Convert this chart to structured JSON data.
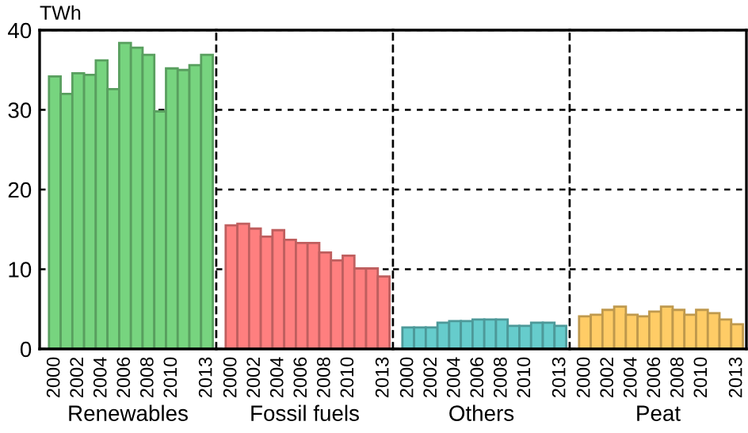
{
  "chart_data": [
    {
      "type": "bar",
      "ylabel": "TWh",
      "xlabel": "Renewables",
      "categories": [
        "2000",
        null,
        "2002",
        null,
        "2004",
        null,
        "2006",
        null,
        "2008",
        null,
        "2010",
        null,
        null,
        "2013"
      ],
      "ylim": [
        0,
        40
      ],
      "yticks": [
        0,
        10,
        20,
        30,
        40
      ],
      "grid": "y",
      "series": [
        {
          "color": "#77d47f",
          "values": [
            34.2,
            32.0,
            34.6,
            34.4,
            36.2,
            32.6,
            38.4,
            37.8,
            36.9,
            29.8,
            35.2,
            35.0,
            35.6,
            36.9
          ]
        }
      ]
    },
    {
      "type": "bar",
      "xlabel": "Fossil fuels",
      "categories": [
        "2000",
        null,
        "2002",
        null,
        "2004",
        null,
        "2006",
        null,
        "2008",
        null,
        "2010",
        null,
        null,
        "2013"
      ],
      "ylim": [
        0,
        40
      ],
      "yticks": [
        0,
        10,
        20,
        30,
        40
      ],
      "grid": "y",
      "tick_labels": "x",
      "series": [
        {
          "color": "#ff7f7f",
          "values": [
            15.5,
            15.7,
            15.1,
            14.1,
            14.9,
            13.7,
            13.3,
            13.3,
            12.1,
            11.1,
            11.7,
            10.1,
            10.1,
            9.1
          ]
        }
      ]
    },
    {
      "type": "bar",
      "xlabel": "Others",
      "categories": [
        "2000",
        null,
        "2002",
        null,
        "2004",
        null,
        "2006",
        null,
        "2008",
        null,
        "2010",
        null,
        null,
        "2013"
      ],
      "ylim": [
        0,
        40
      ],
      "yticks": [
        0,
        10,
        20,
        30,
        40
      ],
      "grid": "y",
      "tick_labels": "x",
      "series": [
        {
          "color": "#66cccc",
          "values": [
            2.7,
            2.7,
            2.7,
            3.3,
            3.5,
            3.5,
            3.7,
            3.7,
            3.7,
            2.9,
            2.9,
            3.3,
            3.3,
            2.9
          ]
        }
      ]
    },
    {
      "type": "bar",
      "xlabel": "Peat",
      "categories": [
        "2000",
        null,
        "2002",
        null,
        "2004",
        null,
        "2006",
        null,
        "2008",
        null,
        "2010",
        null,
        null,
        "2013"
      ],
      "ylim": [
        0,
        40
      ],
      "yticks": [
        0,
        10,
        20,
        30,
        40
      ],
      "grid": "y",
      "tick_labels": "x",
      "series": [
        {
          "color": "#ffcc66",
          "values": [
            4.1,
            4.3,
            4.9,
            5.3,
            4.3,
            4.1,
            4.7,
            5.3,
            4.9,
            4.3,
            4.9,
            4.5,
            3.7,
            3.1
          ]
        }
      ]
    }
  ]
}
